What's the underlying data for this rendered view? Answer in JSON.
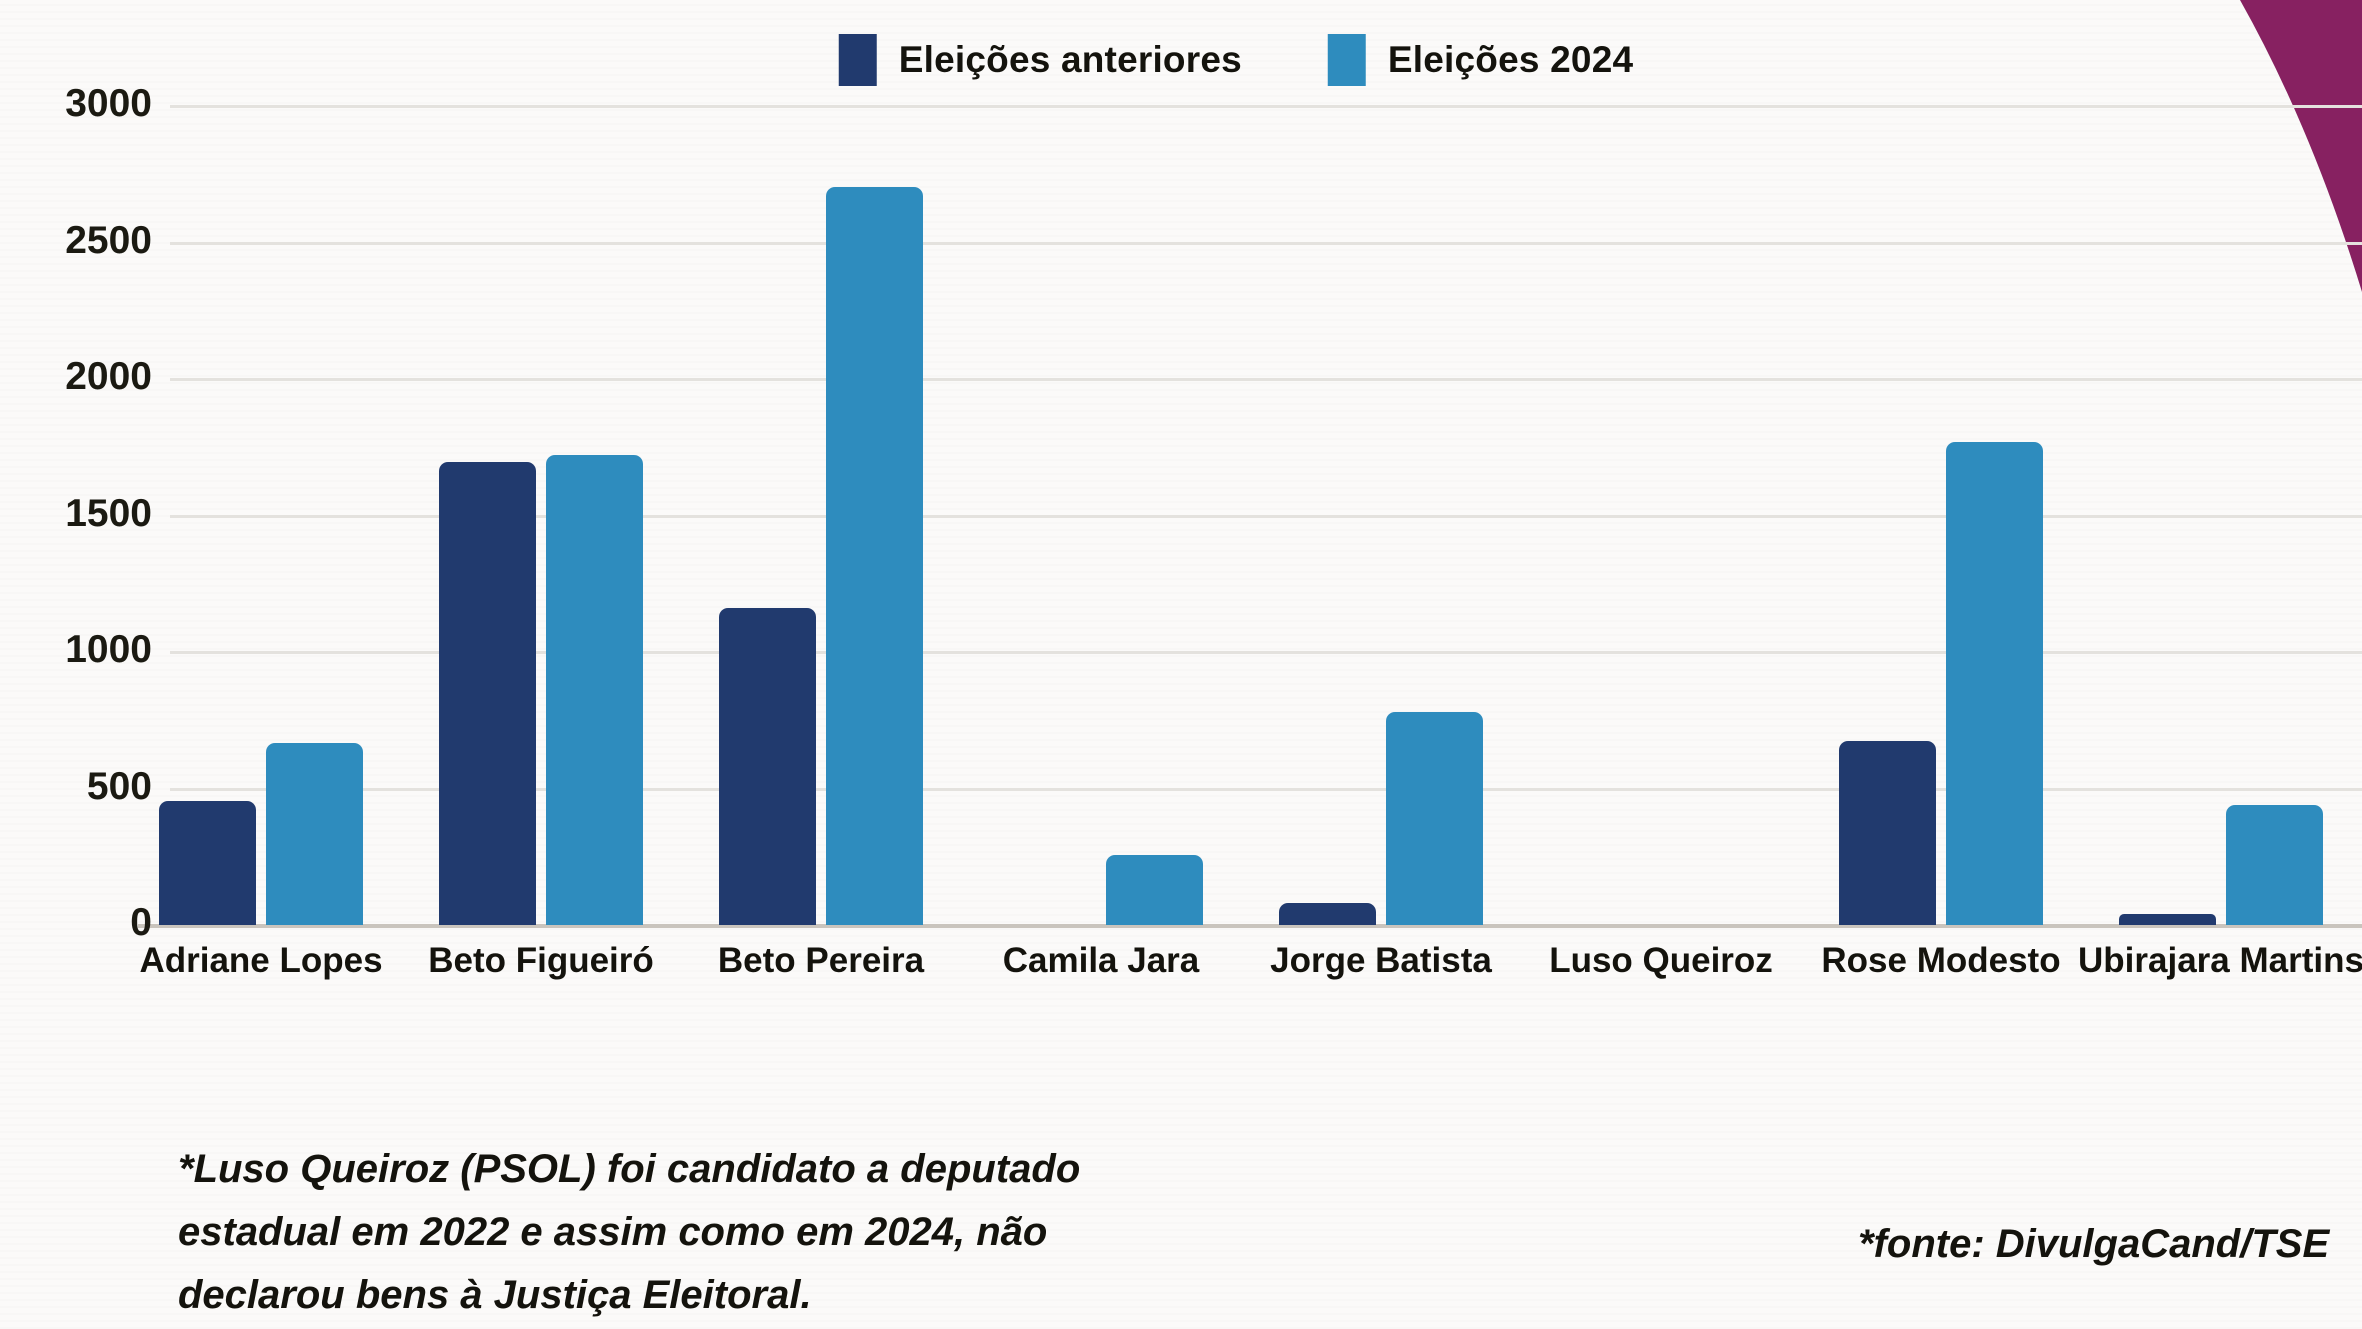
{
  "page": {
    "background": "#fbfaf9",
    "corner_accent_color": "#872161"
  },
  "chart_data": {
    "type": "bar",
    "categories": [
      "Adriane Lopes",
      "Beto Figueiró",
      "Beto Pereira",
      "Camila Jara",
      "Jorge Batista",
      "Luso Queiroz",
      "Rose Modesto",
      "Ubirajara Martins"
    ],
    "series": [
      {
        "name": "Eleições anteriores",
        "color": "#213a6e",
        "values": [
          455,
          1695,
          1160,
          0,
          80,
          0,
          675,
          40
        ]
      },
      {
        "name": "Eleições 2024",
        "color": "#2e8cbe",
        "values": [
          665,
          1720,
          2705,
          255,
          780,
          0,
          1770,
          440
        ]
      }
    ],
    "xlabel": "",
    "ylabel": "",
    "ylim": [
      0,
      3000
    ],
    "ytick_interval": 500,
    "ytick_labels": [
      "0",
      "500",
      "1000",
      "1500",
      "2000",
      "2500",
      "3000"
    ],
    "grid": "horizontal",
    "legend_position": "top-center"
  },
  "footnotes": {
    "left_lines": [
      "*Luso Queiroz (PSOL) foi candidato a deputado",
      "estadual em 2022 e assim como em 2024, não",
      "declarou bens à Justiça Eleitoral."
    ],
    "source": "*fonte: DivulgaCand/TSE"
  }
}
